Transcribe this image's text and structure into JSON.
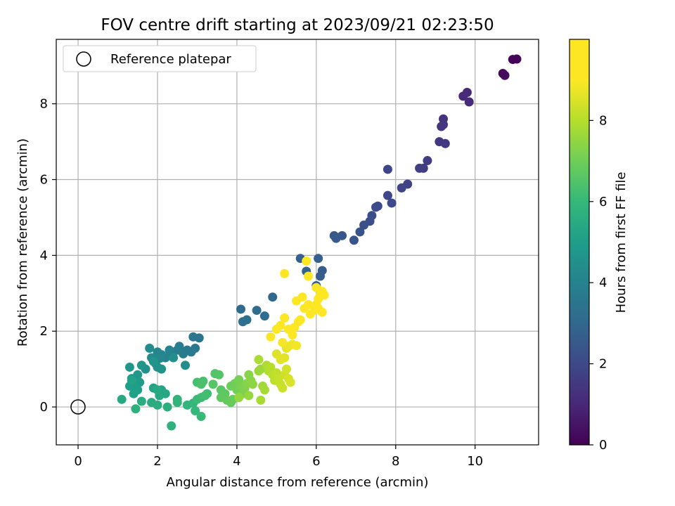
{
  "chart_data": {
    "type": "scatter",
    "title": "FOV centre drift starting at 2023/09/21 02:23:50",
    "xlabel": "Angular distance from reference (arcmin)",
    "ylabel": "Rotation from reference (arcmin)",
    "xlim": [
      -0.55,
      11.6
    ],
    "ylim": [
      -1.0,
      9.7
    ],
    "xticks": [
      "0",
      "2",
      "4",
      "6",
      "8",
      "10"
    ],
    "yticks": [
      "0",
      "2",
      "4",
      "6",
      "8"
    ],
    "grid": true,
    "legend": {
      "position": "top-left",
      "entries": [
        "Reference platepar"
      ]
    },
    "colorbar": {
      "label": "Hours from first FF file",
      "range": [
        0,
        10
      ],
      "ticks": [
        "0",
        "2",
        "4",
        "6",
        "8"
      ],
      "colormap": "viridis"
    },
    "reference_point": {
      "x": 0,
      "y": 0,
      "marker": "hollow-circle"
    },
    "points": [
      [
        10.95,
        9.17,
        0.05
      ],
      [
        11.05,
        9.18,
        0.08
      ],
      [
        10.7,
        8.8,
        0.2
      ],
      [
        10.75,
        8.75,
        0.25
      ],
      [
        9.8,
        8.3,
        1.0
      ],
      [
        9.7,
        8.2,
        1.05
      ],
      [
        9.85,
        8.05,
        1.1
      ],
      [
        9.2,
        7.6,
        1.3
      ],
      [
        9.2,
        7.45,
        1.35
      ],
      [
        9.15,
        7.4,
        1.4
      ],
      [
        9.1,
        7.0,
        1.45
      ],
      [
        9.25,
        6.95,
        1.5
      ],
      [
        8.8,
        6.5,
        1.6
      ],
      [
        8.7,
        6.3,
        1.65
      ],
      [
        8.6,
        6.3,
        1.7
      ],
      [
        8.3,
        5.88,
        1.8
      ],
      [
        8.15,
        5.78,
        1.85
      ],
      [
        7.8,
        6.27,
        1.9
      ],
      [
        7.8,
        5.58,
        1.95
      ],
      [
        7.9,
        5.38,
        2.0
      ],
      [
        7.55,
        5.3,
        2.05
      ],
      [
        7.5,
        5.27,
        2.1
      ],
      [
        7.4,
        5.05,
        2.15
      ],
      [
        7.35,
        4.9,
        2.2
      ],
      [
        7.2,
        4.8,
        2.25
      ],
      [
        7.1,
        4.62,
        2.3
      ],
      [
        6.95,
        4.4,
        2.35
      ],
      [
        6.65,
        4.52,
        2.4
      ],
      [
        6.45,
        4.52,
        2.45
      ],
      [
        6.5,
        4.45,
        2.5
      ],
      [
        6.15,
        3.6,
        2.6
      ],
      [
        6.1,
        3.45,
        2.65
      ],
      [
        6.05,
        3.92,
        2.7
      ],
      [
        5.6,
        3.92,
        2.75
      ],
      [
        5.75,
        3.58,
        2.8
      ],
      [
        6.0,
        3.2,
        2.85
      ],
      [
        4.9,
        2.9,
        3.0
      ],
      [
        4.1,
        2.58,
        3.1
      ],
      [
        4.5,
        2.55,
        3.15
      ],
      [
        4.7,
        2.4,
        3.2
      ],
      [
        4.25,
        2.3,
        3.25
      ],
      [
        4.15,
        2.25,
        3.3
      ],
      [
        2.9,
        1.85,
        3.5
      ],
      [
        3.05,
        1.82,
        3.55
      ],
      [
        2.95,
        1.55,
        3.6
      ],
      [
        2.85,
        1.45,
        3.65
      ],
      [
        2.75,
        1.5,
        3.7
      ],
      [
        2.65,
        1.4,
        3.75
      ],
      [
        2.55,
        1.6,
        3.8
      ],
      [
        2.5,
        1.5,
        3.85
      ],
      [
        2.4,
        1.45,
        3.9
      ],
      [
        2.35,
        1.35,
        3.95
      ],
      [
        2.3,
        1.5,
        4.0
      ],
      [
        2.2,
        1.3,
        4.05
      ],
      [
        2.1,
        1.38,
        4.1
      ],
      [
        2.0,
        1.45,
        4.15
      ],
      [
        2.05,
        1.28,
        4.2
      ],
      [
        1.95,
        1.15,
        4.25
      ],
      [
        1.85,
        1.3,
        4.3
      ],
      [
        1.8,
        1.55,
        4.35
      ],
      [
        2.7,
        1.1,
        4.4
      ],
      [
        2.4,
        1.3,
        4.45
      ],
      [
        2.0,
        1.05,
        4.5
      ],
      [
        1.7,
        1.0,
        4.55
      ],
      [
        2.1,
        1.0,
        4.6
      ],
      [
        1.9,
        1.2,
        4.65
      ],
      [
        1.6,
        1.1,
        4.7
      ],
      [
        1.3,
        1.05,
        4.75
      ],
      [
        1.5,
        0.85,
        4.8
      ],
      [
        1.35,
        0.75,
        4.85
      ],
      [
        1.55,
        0.65,
        4.9
      ],
      [
        1.45,
        0.55,
        4.95
      ],
      [
        1.3,
        0.55,
        5.0
      ],
      [
        1.5,
        0.45,
        5.05
      ],
      [
        1.4,
        0.35,
        5.1
      ],
      [
        1.35,
        0.7,
        5.15
      ],
      [
        1.9,
        0.5,
        5.2
      ],
      [
        2.1,
        0.45,
        5.25
      ],
      [
        2.2,
        0.35,
        5.3
      ],
      [
        2.05,
        0.3,
        5.35
      ],
      [
        2.0,
        0.45,
        5.4
      ],
      [
        1.1,
        0.2,
        5.45
      ],
      [
        1.6,
        0.15,
        5.5
      ],
      [
        1.85,
        0.12,
        5.55
      ],
      [
        2.0,
        0.05,
        5.6
      ],
      [
        2.25,
        0.0,
        5.65
      ],
      [
        1.45,
        -0.05,
        5.7
      ],
      [
        2.35,
        -0.5,
        5.75
      ],
      [
        2.5,
        0.2,
        5.8
      ],
      [
        2.5,
        0.12,
        5.85
      ],
      [
        2.75,
        0.05,
        5.9
      ],
      [
        2.9,
        0.1,
        5.95
      ],
      [
        2.95,
        -0.1,
        6.0
      ],
      [
        3.1,
        -0.25,
        6.05
      ],
      [
        3.0,
        0.2,
        6.1
      ],
      [
        3.1,
        0.25,
        6.15
      ],
      [
        3.25,
        0.35,
        6.2
      ],
      [
        3.2,
        0.3,
        6.25
      ],
      [
        3.0,
        0.65,
        6.3
      ],
      [
        3.15,
        0.68,
        6.35
      ],
      [
        3.1,
        0.6,
        6.4
      ],
      [
        3.45,
        0.88,
        6.5
      ],
      [
        3.55,
        0.85,
        6.55
      ],
      [
        3.4,
        0.6,
        6.6
      ],
      [
        3.6,
        0.45,
        6.65
      ],
      [
        3.7,
        0.35,
        6.7
      ],
      [
        3.6,
        0.25,
        6.75
      ],
      [
        3.75,
        0.18,
        6.8
      ],
      [
        3.85,
        0.12,
        6.85
      ],
      [
        3.9,
        0.2,
        6.9
      ],
      [
        3.85,
        0.55,
        6.95
      ],
      [
        3.95,
        0.62,
        7.0
      ],
      [
        4.0,
        0.45,
        7.05
      ],
      [
        4.05,
        0.72,
        7.1
      ],
      [
        4.1,
        0.55,
        7.15
      ],
      [
        4.15,
        0.35,
        7.2
      ],
      [
        4.2,
        0.5,
        7.25
      ],
      [
        4.25,
        0.62,
        7.3
      ],
      [
        4.3,
        0.85,
        7.35
      ],
      [
        4.35,
        0.7,
        7.4
      ],
      [
        4.4,
        0.6,
        7.45
      ],
      [
        4.05,
        0.25,
        7.5
      ],
      [
        4.3,
        0.3,
        7.55
      ],
      [
        4.55,
        0.95,
        7.6
      ],
      [
        4.6,
        1.0,
        7.65
      ],
      [
        4.65,
        0.55,
        7.7
      ],
      [
        4.7,
        0.45,
        7.75
      ],
      [
        4.6,
        0.18,
        7.8
      ],
      [
        4.55,
        1.25,
        7.85
      ],
      [
        4.75,
        1.1,
        7.9
      ],
      [
        4.8,
        0.95,
        7.95
      ],
      [
        4.85,
        1.05,
        8.0
      ],
      [
        4.9,
        0.85,
        8.05
      ],
      [
        4.95,
        0.7,
        8.1
      ],
      [
        5.0,
        0.9,
        8.15
      ],
      [
        5.05,
        0.75,
        8.2
      ],
      [
        5.1,
        0.6,
        8.25
      ],
      [
        5.15,
        0.5,
        8.3
      ],
      [
        5.2,
        0.85,
        8.35
      ],
      [
        5.25,
        1.0,
        8.4
      ],
      [
        5.3,
        0.75,
        8.45
      ],
      [
        5.35,
        0.65,
        8.5
      ],
      [
        5.0,
        1.4,
        8.55
      ],
      [
        5.1,
        1.25,
        8.6
      ],
      [
        5.2,
        1.3,
        8.65
      ],
      [
        5.25,
        1.55,
        8.7
      ],
      [
        5.3,
        1.6,
        8.75
      ],
      [
        5.4,
        1.65,
        8.8
      ],
      [
        5.5,
        1.62,
        8.85
      ],
      [
        5.15,
        1.7,
        8.9
      ],
      [
        4.85,
        1.85,
        8.95
      ],
      [
        5.0,
        2.05,
        9.0
      ],
      [
        5.1,
        2.15,
        9.05
      ],
      [
        5.2,
        2.35,
        9.1
      ],
      [
        5.3,
        2.05,
        9.15
      ],
      [
        5.4,
        1.9,
        9.2
      ],
      [
        5.45,
        2.1,
        9.25
      ],
      [
        5.55,
        2.25,
        9.3
      ],
      [
        5.6,
        2.3,
        9.35
      ],
      [
        5.5,
        2.8,
        9.4
      ],
      [
        5.65,
        2.9,
        9.45
      ],
      [
        5.7,
        2.6,
        9.5
      ],
      [
        5.8,
        2.7,
        9.55
      ],
      [
        5.85,
        2.45,
        9.6
      ],
      [
        5.95,
        2.55,
        9.65
      ],
      [
        6.0,
        2.7,
        9.7
      ],
      [
        6.05,
        2.85,
        9.75
      ],
      [
        6.1,
        2.95,
        9.8
      ],
      [
        6.15,
        3.05,
        9.85
      ],
      [
        6.2,
        2.95,
        9.9
      ],
      [
        6.15,
        2.5,
        9.92
      ],
      [
        5.2,
        3.52,
        9.5
      ],
      [
        5.75,
        3.85,
        9.95
      ],
      [
        5.8,
        3.45,
        9.9
      ],
      [
        6.0,
        3.15,
        9.88
      ],
      [
        6.05,
        2.6,
        9.85
      ]
    ]
  }
}
